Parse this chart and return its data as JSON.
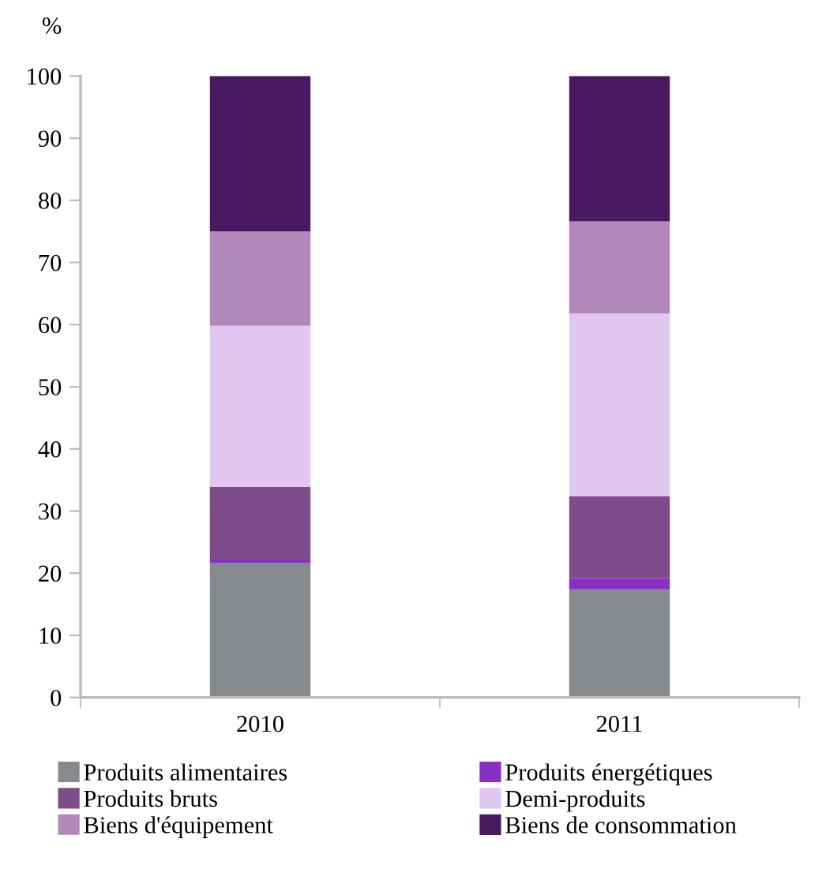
{
  "chart_data": {
    "type": "bar",
    "stacked": true,
    "ylabel": "%",
    "categories": [
      "2010",
      "2011"
    ],
    "series": [
      {
        "name": "Produits alimentaires",
        "color": "#878a8c",
        "values": [
          21.6,
          17.4
        ]
      },
      {
        "name": "Produits énergétiques",
        "color": "#8a2fc6",
        "values": [
          0.6,
          1.8
        ]
      },
      {
        "name": "Produits bruts",
        "color": "#7e4b8b",
        "values": [
          11.7,
          13.2
        ]
      },
      {
        "name": "Demi-produits",
        "color": "#e1c6f0",
        "values": [
          25.9,
          29.4
        ]
      },
      {
        "name": "Biens d'équipement",
        "color": "#b088b9",
        "values": [
          15.2,
          14.8
        ]
      },
      {
        "name": "Biens de consommation",
        "color": "#481860",
        "values": [
          25.0,
          23.4
        ]
      }
    ],
    "ylim": [
      0,
      100
    ],
    "yticks": [
      0,
      10,
      20,
      30,
      40,
      50,
      60,
      70,
      80,
      90,
      100
    ],
    "grid": false,
    "legend": "bottom"
  }
}
